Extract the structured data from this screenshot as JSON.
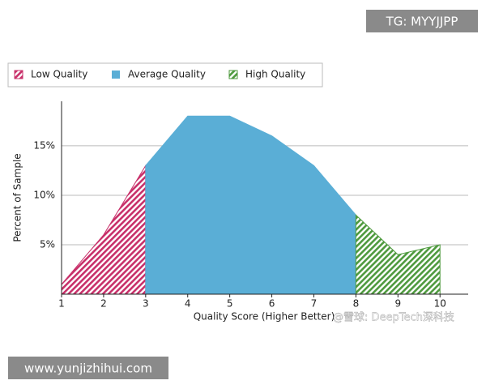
{
  "chart_data": {
    "type": "area",
    "ylabel": "Percent of Sample",
    "xlabel": "Quality Score (Higher Better)",
    "x": [
      1,
      2,
      3,
      4,
      5,
      6,
      7,
      8,
      9,
      10
    ],
    "series": [
      {
        "name": "Low Quality",
        "color": "#c8306a",
        "hatch": true,
        "values": [
          1,
          6,
          13,
          null,
          null,
          null,
          null,
          null,
          null,
          null
        ]
      },
      {
        "name": "Average Quality",
        "color": "#5aaed6",
        "hatch": false,
        "values": [
          null,
          null,
          13,
          18,
          18,
          16,
          13,
          8,
          null,
          null
        ]
      },
      {
        "name": "High Quality",
        "color": "#4e9a3e",
        "hatch": true,
        "values": [
          null,
          null,
          null,
          null,
          null,
          null,
          null,
          8,
          4,
          5
        ]
      }
    ],
    "xlim": [
      1,
      10.67
    ],
    "xticks": [
      1,
      2,
      3,
      4,
      5,
      6,
      7,
      8,
      9,
      10
    ],
    "ylim": [
      0,
      19.5
    ],
    "yticks": [
      {
        "value": 5,
        "label": "5%"
      },
      {
        "value": 10,
        "label": "10%"
      },
      {
        "value": 15,
        "label": "15%"
      }
    ],
    "grid": true,
    "legend": "top",
    "watermarks": [
      "TG: MYYJJPP",
      "www.yunjizhihui.com",
      "@雪球: DeepTech深科技"
    ]
  }
}
